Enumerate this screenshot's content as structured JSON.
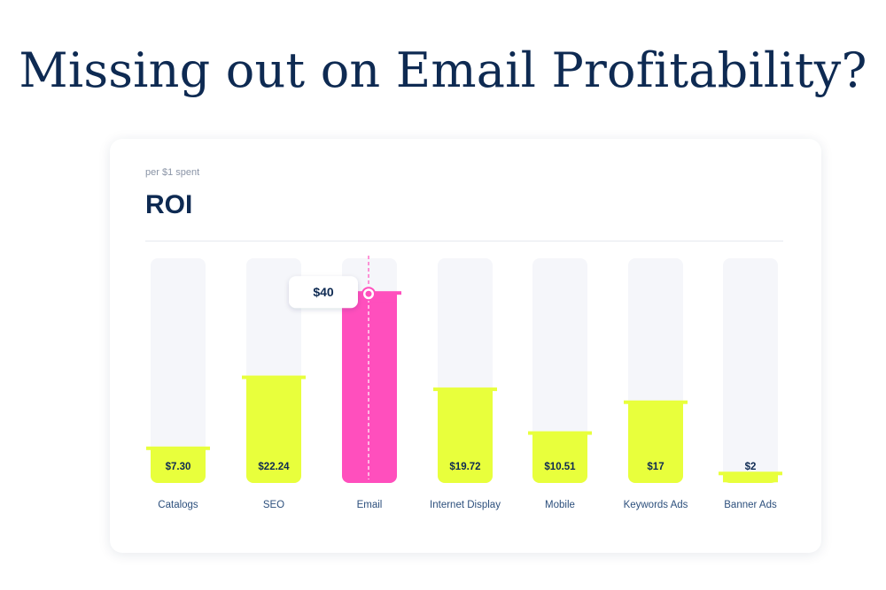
{
  "headline": "Missing out on Email Profitability?",
  "card": {
    "subtitle": "per $1 spent",
    "title": "ROI"
  },
  "colors": {
    "accent": "#ff4fbd",
    "bar": "#e8ff3c",
    "track": "#f5f6fa",
    "text_dark": "#0e2a52",
    "label": "#2c4f7c"
  },
  "chart_data": {
    "type": "bar",
    "categories": [
      "Catalogs",
      "SEO",
      "Email",
      "Internet Display",
      "Mobile",
      "Keywords Ads",
      "Banner Ads"
    ],
    "values": [
      7.3,
      22.24,
      40,
      19.72,
      10.51,
      17,
      2
    ],
    "value_labels": [
      "$7.30",
      "$22.24",
      "",
      "$19.72",
      "$10.51",
      "$17",
      "$2"
    ],
    "highlight_index": 2,
    "highlight_tooltip": "$40",
    "title": "ROI",
    "subtitle": "per $1 spent",
    "ylim": [
      0,
      48
    ],
    "grid": false,
    "legend": "none"
  }
}
